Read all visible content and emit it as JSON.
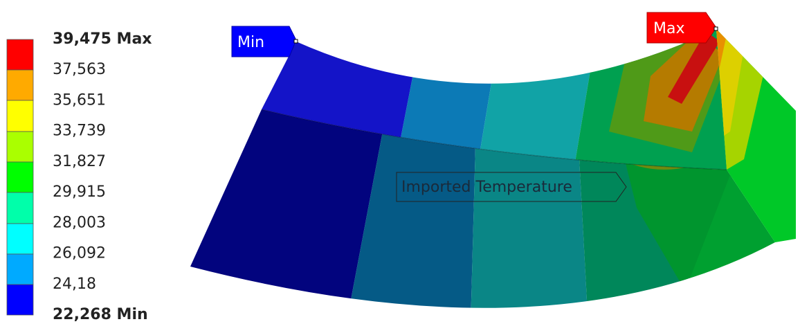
{
  "legend": {
    "labels": [
      "39,475 Max",
      "37,563",
      "35,651",
      "33,739",
      "31,827",
      "29,915",
      "28,003",
      "26,092",
      "24,18",
      "22,268 Min"
    ]
  },
  "annotations": {
    "min": "Min",
    "max": "Max",
    "probe": "Imported Temperature"
  }
}
